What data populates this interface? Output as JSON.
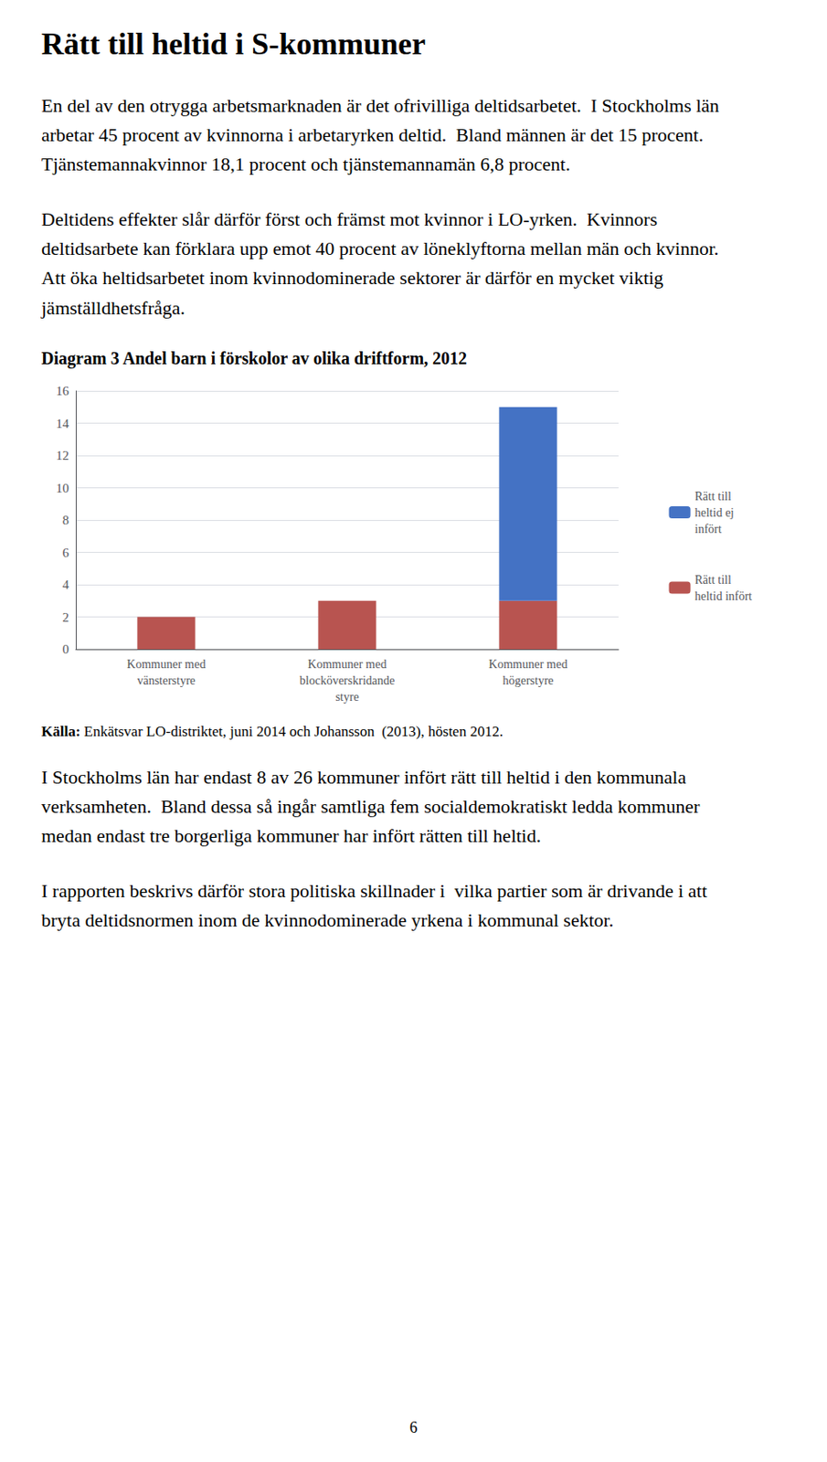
{
  "title": "Rätt till heltid i S-kommuner",
  "paragraphs_before": [
    "En del av den otrygga arbetsmarknaden är det ofrivilliga deltidsarbetet.  I Stockholms län arbetar 45 procent av kvinnorna i arbetaryrken deltid.  Bland männen är det 15 procent.  Tjänstemannakvinnor 18,1 procent och tjänstemannamän 6,8 procent.",
    "Deltidens effekter slår därför först och främst mot kvinnor i LO-yrken.  Kvinnors deltidsarbete kan förklara upp emot 40 procent av löneklyftorna mellan män och kvinnor.  Att öka heltidsarbetet inom kvinnodominerade sektorer är därför en mycket viktig jämställdhetsfråga."
  ],
  "source_label": "Källa:",
  "source": " Enkätsvar LO-distriktet, juni 2014 och Johansson  (2013), hösten 2012.",
  "paragraphs_after": [
    "I Stockholms län har endast 8 av 26 kommuner infört rätt till heltid i den kommunala verksamheten.  Bland dessa så ingår samtliga fem socialdemokratiskt ledda kommuner medan endast tre borgerliga kommuner har infört rätten till heltid.",
    "I rapporten beskrivs därför stora politiska skillnader i  vilka partier som är drivande i att bryta deltidsnormen inom de kvinnodominerade yrkena i kommunal sektor."
  ],
  "page_number": "6",
  "chart_data": {
    "type": "bar",
    "title": "Diagram 3 Andel barn i förskolor av olika driftform, 2012",
    "categories": [
      "Kommuner med\nvänsterstyre",
      "Kommuner med\nblocköverskridande\nstyre",
      "Kommuner med\nhögerstyre"
    ],
    "series": [
      {
        "name": "Rätt till\nheltid infört",
        "color": "#b85450",
        "values": [
          2,
          3,
          3
        ]
      },
      {
        "name": "Rätt till\nheltid ej\ninfört",
        "color": "#4472c4",
        "values": [
          0,
          0,
          12
        ]
      }
    ],
    "stacked": true,
    "ylim": [
      0,
      16
    ],
    "yticks": [
      0,
      2,
      4,
      6,
      8,
      10,
      12,
      14,
      16
    ],
    "grid": true,
    "legend": "right"
  }
}
